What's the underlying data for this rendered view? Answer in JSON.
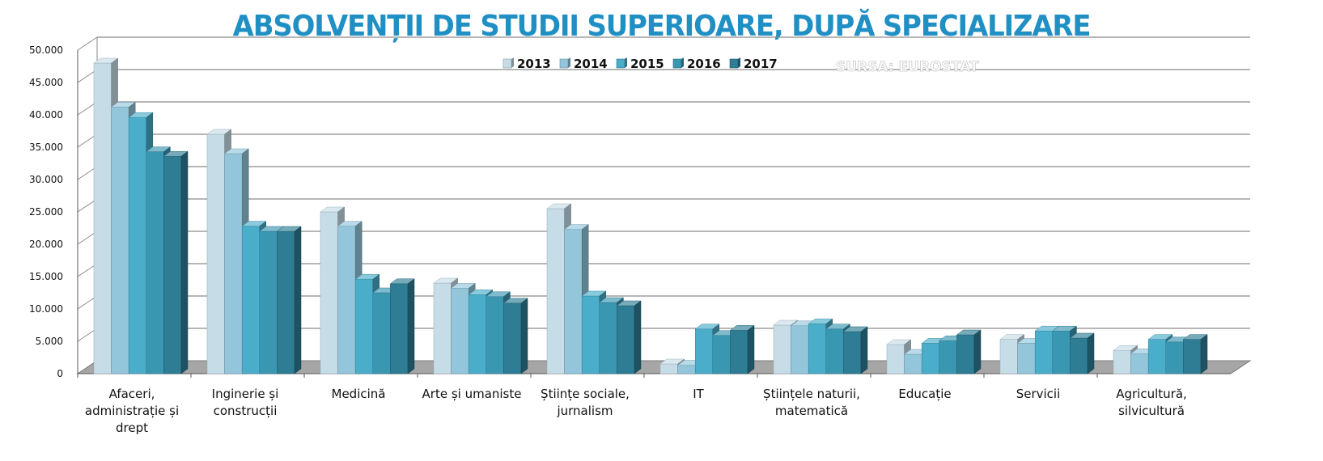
{
  "page": {
    "title": "ABSOLVENȚII DE STUDII SUPERIOARE, DUPĂ SPECIALIZARE"
  },
  "chart_data": {
    "type": "bar",
    "title": "ABSOLVENȚII DE STUDII SUPERIOARE, DUPĂ SPECIALIZARE",
    "source": "SURSA: EUROSTAT",
    "categories": [
      "Afaceri, administrație și drept",
      "Inginerie și construcții",
      "Medicină",
      "Arte și umaniste",
      "Științe sociale, jurnalism",
      "IT",
      "Științele naturii, matematică",
      "Educație",
      "Servicii",
      "Agricultură, silvicultură"
    ],
    "category_lines": [
      [
        "Afaceri,",
        "administrație și",
        "drept"
      ],
      [
        "Inginerie și",
        "construcții"
      ],
      [
        "Medicină"
      ],
      [
        "Arte și umaniste"
      ],
      [
        "Științe sociale,",
        "jurnalism"
      ],
      [
        "IT"
      ],
      [
        "Științele naturii,",
        "matematică"
      ],
      [
        "Educație"
      ],
      [
        "Servicii"
      ],
      [
        "Agricultură,",
        "silvicultură"
      ]
    ],
    "series": [
      {
        "name": "2013",
        "color": "#c6dde8",
        "values": [
          48000,
          37000,
          25000,
          14000,
          25500,
          1500,
          7500,
          4500,
          5300,
          3600
        ]
      },
      {
        "name": "2014",
        "color": "#93c6db",
        "values": [
          41200,
          34000,
          22800,
          13200,
          22300,
          1300,
          7400,
          3000,
          4700,
          3100
        ]
      },
      {
        "name": "2015",
        "color": "#4aadc9",
        "values": [
          39600,
          22800,
          14600,
          12200,
          12000,
          6900,
          7700,
          4700,
          6600,
          5300
        ]
      },
      {
        "name": "2016",
        "color": "#3a97b2",
        "values": [
          34300,
          22000,
          12500,
          11900,
          11000,
          5900,
          6900,
          5100,
          6600,
          4900
        ]
      },
      {
        "name": "2017",
        "color": "#2e7d95",
        "values": [
          33600,
          22000,
          13900,
          10900,
          10500,
          6700,
          6500,
          6000,
          5500,
          5300
        ]
      }
    ],
    "yticks": [
      "0",
      "5.000",
      "10.000",
      "15.000",
      "20.000",
      "25.000",
      "30.000",
      "35.000",
      "40.000",
      "45.000",
      "50.000"
    ],
    "ylim": [
      0,
      50000
    ],
    "legend_position": "top-center",
    "grid": true,
    "style": "3d-column"
  }
}
